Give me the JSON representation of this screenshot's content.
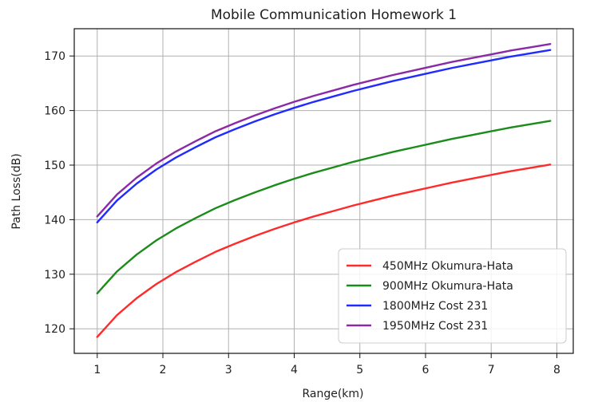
{
  "chart_data": {
    "type": "line",
    "title": "Mobile Communication Homework 1",
    "xlabel": "Range(km)",
    "ylabel": "Path Loss(dB)",
    "xlim": [
      0.65,
      8.25
    ],
    "ylim": [
      115.5,
      175.0
    ],
    "xticks": [
      1,
      2,
      3,
      4,
      5,
      6,
      7,
      8
    ],
    "yticks": [
      120,
      130,
      140,
      150,
      160,
      170
    ],
    "grid": true,
    "legend_position": "lower right",
    "series": [
      {
        "name": "450MHz Okumura-Hata",
        "color": "#ff2a2a",
        "x": [
          1.0,
          1.3,
          1.6,
          1.9,
          2.2,
          2.5,
          2.8,
          3.1,
          3.4,
          3.7,
          4.0,
          4.3,
          4.6,
          4.9,
          5.2,
          5.5,
          5.8,
          6.1,
          6.4,
          6.7,
          7.0,
          7.3,
          7.6,
          7.9
        ],
        "y": [
          118.5,
          122.5,
          125.6,
          128.2,
          130.4,
          132.3,
          134.1,
          135.6,
          137.0,
          138.3,
          139.5,
          140.6,
          141.6,
          142.6,
          143.5,
          144.4,
          145.2,
          146.0,
          146.8,
          147.5,
          148.2,
          148.9,
          149.5,
          150.1
        ]
      },
      {
        "name": "900MHz Okumura-Hata",
        "color": "#1a8c1a",
        "x": [
          1.0,
          1.3,
          1.6,
          1.9,
          2.2,
          2.5,
          2.8,
          3.1,
          3.4,
          3.7,
          4.0,
          4.3,
          4.6,
          4.9,
          5.2,
          5.5,
          5.8,
          6.1,
          6.4,
          6.7,
          7.0,
          7.3,
          7.6,
          7.9
        ],
        "y": [
          126.5,
          130.5,
          133.6,
          136.2,
          138.4,
          140.3,
          142.1,
          143.6,
          145.0,
          146.3,
          147.5,
          148.6,
          149.6,
          150.6,
          151.5,
          152.4,
          153.2,
          154.0,
          154.8,
          155.5,
          156.2,
          156.9,
          157.5,
          158.1
        ]
      },
      {
        "name": "1800MHz Cost 231",
        "color": "#1f2bff",
        "x": [
          1.0,
          1.3,
          1.6,
          1.9,
          2.2,
          2.5,
          2.8,
          3.1,
          3.4,
          3.7,
          4.0,
          4.3,
          4.6,
          4.9,
          5.2,
          5.5,
          5.8,
          6.1,
          6.4,
          6.7,
          7.0,
          7.3,
          7.6,
          7.9
        ],
        "y": [
          139.5,
          143.5,
          146.6,
          149.2,
          151.4,
          153.3,
          155.1,
          156.6,
          158.0,
          159.3,
          160.5,
          161.6,
          162.6,
          163.6,
          164.5,
          165.4,
          166.2,
          167.0,
          167.8,
          168.5,
          169.2,
          169.9,
          170.5,
          171.1
        ]
      },
      {
        "name": "1950MHz Cost 231",
        "color": "#8b2aa6",
        "x": [
          1.0,
          1.3,
          1.6,
          1.9,
          2.2,
          2.5,
          2.8,
          3.1,
          3.4,
          3.7,
          4.0,
          4.3,
          4.6,
          4.9,
          5.2,
          5.5,
          5.8,
          6.1,
          6.4,
          6.7,
          7.0,
          7.3,
          7.6,
          7.9
        ],
        "y": [
          140.6,
          144.6,
          147.7,
          150.3,
          152.5,
          154.4,
          156.2,
          157.7,
          159.1,
          160.4,
          161.6,
          162.7,
          163.7,
          164.7,
          165.6,
          166.5,
          167.3,
          168.1,
          168.9,
          169.6,
          170.3,
          171.0,
          171.6,
          172.2
        ]
      }
    ]
  }
}
